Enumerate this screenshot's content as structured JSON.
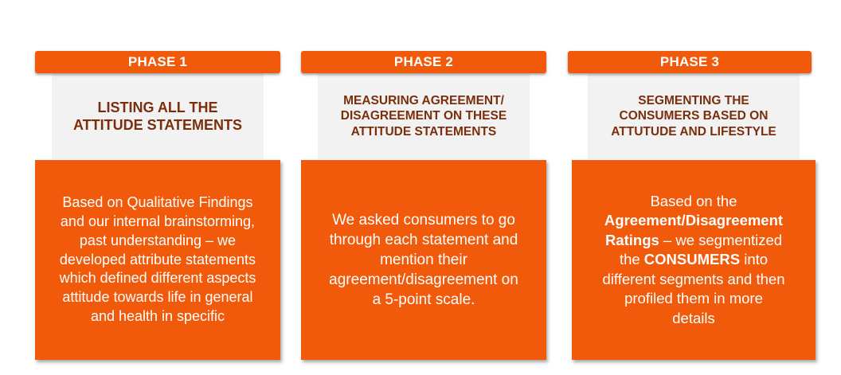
{
  "phases": [
    {
      "label": "PHASE 1",
      "subtitle_lines": [
        "LISTING ALL THE",
        "ATTITUDE STATEMENTS"
      ],
      "body_lines": [
        "Based on Qualitative Findings",
        "and our internal brainstorming,",
        "past understanding – we",
        "developed attribute statements",
        "which defined different aspects",
        "attitude towards life in general",
        "and health in specific"
      ]
    },
    {
      "label": "PHASE 2",
      "subtitle_lines": [
        "MEASURING AGREEMENT/",
        "DISAGREEMENT ON THESE",
        "ATTITUDE STATEMENTS"
      ],
      "body_lines": [
        "We asked consumers to go",
        "through each statement and",
        "mention their",
        "agreement/disagreement on",
        "a 5-point scale."
      ]
    },
    {
      "label": "PHASE 3",
      "subtitle_lines": [
        "SEGMENTING THE",
        "CONSUMERS BASED ON",
        "ATTUTUDE AND LIFESTYLE"
      ],
      "body": {
        "line1": "Based on the",
        "bold1": "Agreement/Disagreement",
        "bold2": "Ratings",
        "line3_rest": " – we segmentized",
        "line4_pre": "the ",
        "bold3": "CONSUMERS",
        "line4_post": " into",
        "line5": "different segments and then",
        "line6": "profiled them in more",
        "line7": "details"
      }
    }
  ],
  "colors": {
    "accent": "#f05a0a",
    "subtitle_bg": "#f2f2f2",
    "subtitle_text": "#7a2e0c"
  }
}
